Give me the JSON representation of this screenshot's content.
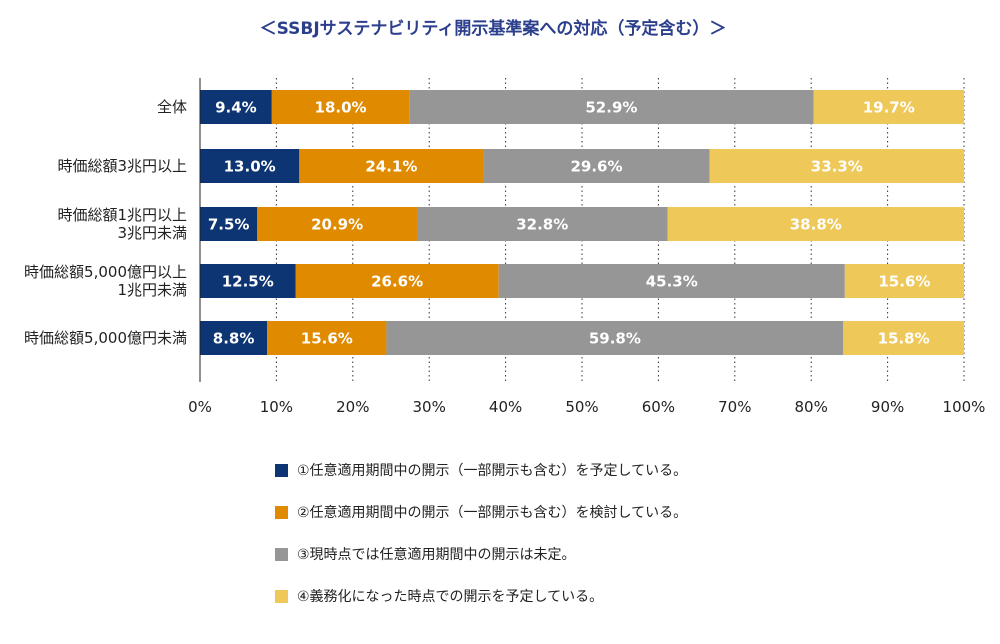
{
  "chart_data": {
    "type": "bar",
    "orientation": "horizontal",
    "stacked": true,
    "title": "＜SSBJサステナビリティ開示基準案への対応（予定含む）＞",
    "categories": [
      [
        "全体"
      ],
      [
        "時価総額3兆円以上"
      ],
      [
        "時価総額1兆円以上",
        "3兆円未満"
      ],
      [
        "時価総額5,000億円以上",
        "1兆円未満"
      ],
      [
        "時価総額5,000億円未満"
      ]
    ],
    "series": [
      {
        "name": "①任意適用期間中の開示（一部開示も含む）を予定している。",
        "color": "#0d3473",
        "values": [
          9.4,
          13.0,
          7.5,
          12.5,
          8.8
        ]
      },
      {
        "name": "②任意適用期間中の開示（一部開示も含む）を検討している。",
        "color": "#e08a00",
        "values": [
          18.0,
          24.1,
          20.9,
          26.6,
          15.6
        ]
      },
      {
        "name": "③現時点では任意適用期間中の開示は未定。",
        "color": "#969696",
        "values": [
          52.9,
          29.6,
          32.8,
          45.3,
          59.8
        ]
      },
      {
        "name": "④義務化になった時点での開示を予定している。",
        "color": "#efc85a",
        "values": [
          19.7,
          33.3,
          38.8,
          15.6,
          15.8
        ]
      }
    ],
    "xlim": [
      0,
      100
    ],
    "xticks": [
      "0%",
      "10%",
      "20%",
      "30%",
      "40%",
      "50%",
      "60%",
      "70%",
      "80%",
      "90%",
      "100%"
    ],
    "value_suffix": "%",
    "grid": "vertical-dotted",
    "legend_position": "bottom"
  }
}
